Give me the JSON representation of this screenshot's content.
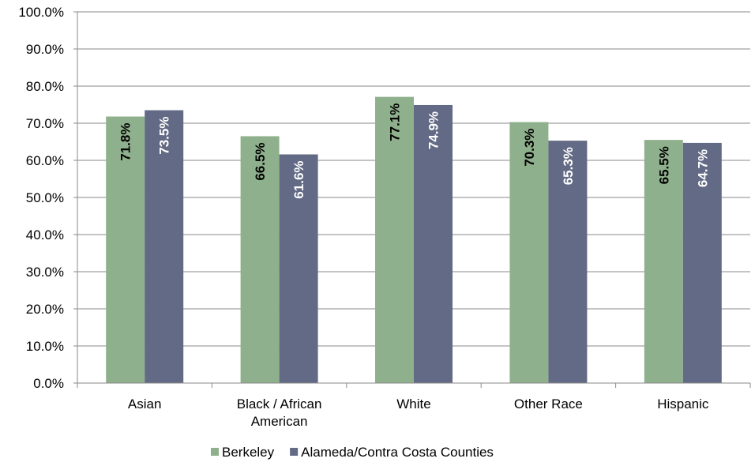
{
  "chart_data": {
    "type": "bar",
    "categories": [
      [
        "Asian"
      ],
      [
        "Black / African",
        "American"
      ],
      [
        "White"
      ],
      [
        "Other Race"
      ],
      [
        "Hispanic"
      ]
    ],
    "series": [
      {
        "name": "Berkeley",
        "color": "#8fb08c",
        "label_color": "#000000",
        "values": [
          71.8,
          66.5,
          77.1,
          70.3,
          65.5
        ],
        "labels": [
          "71.8%",
          "66.5%",
          "77.1%",
          "70.3%",
          "65.5%"
        ]
      },
      {
        "name": "Alameda/Contra Costa Counties",
        "color": "#636a85",
        "label_color": "#ffffff",
        "values": [
          73.5,
          61.6,
          74.9,
          65.3,
          64.7
        ],
        "labels": [
          "73.5%",
          "61.6%",
          "74.9%",
          "65.3%",
          "64.7%"
        ]
      }
    ],
    "y_ticks": [
      "0.0%",
      "10.0%",
      "20.0%",
      "30.0%",
      "40.0%",
      "50.0%",
      "60.0%",
      "70.0%",
      "80.0%",
      "90.0%",
      "100.0%"
    ],
    "ylim": [
      0,
      100
    ],
    "grid": true,
    "legend_position": "bottom"
  }
}
